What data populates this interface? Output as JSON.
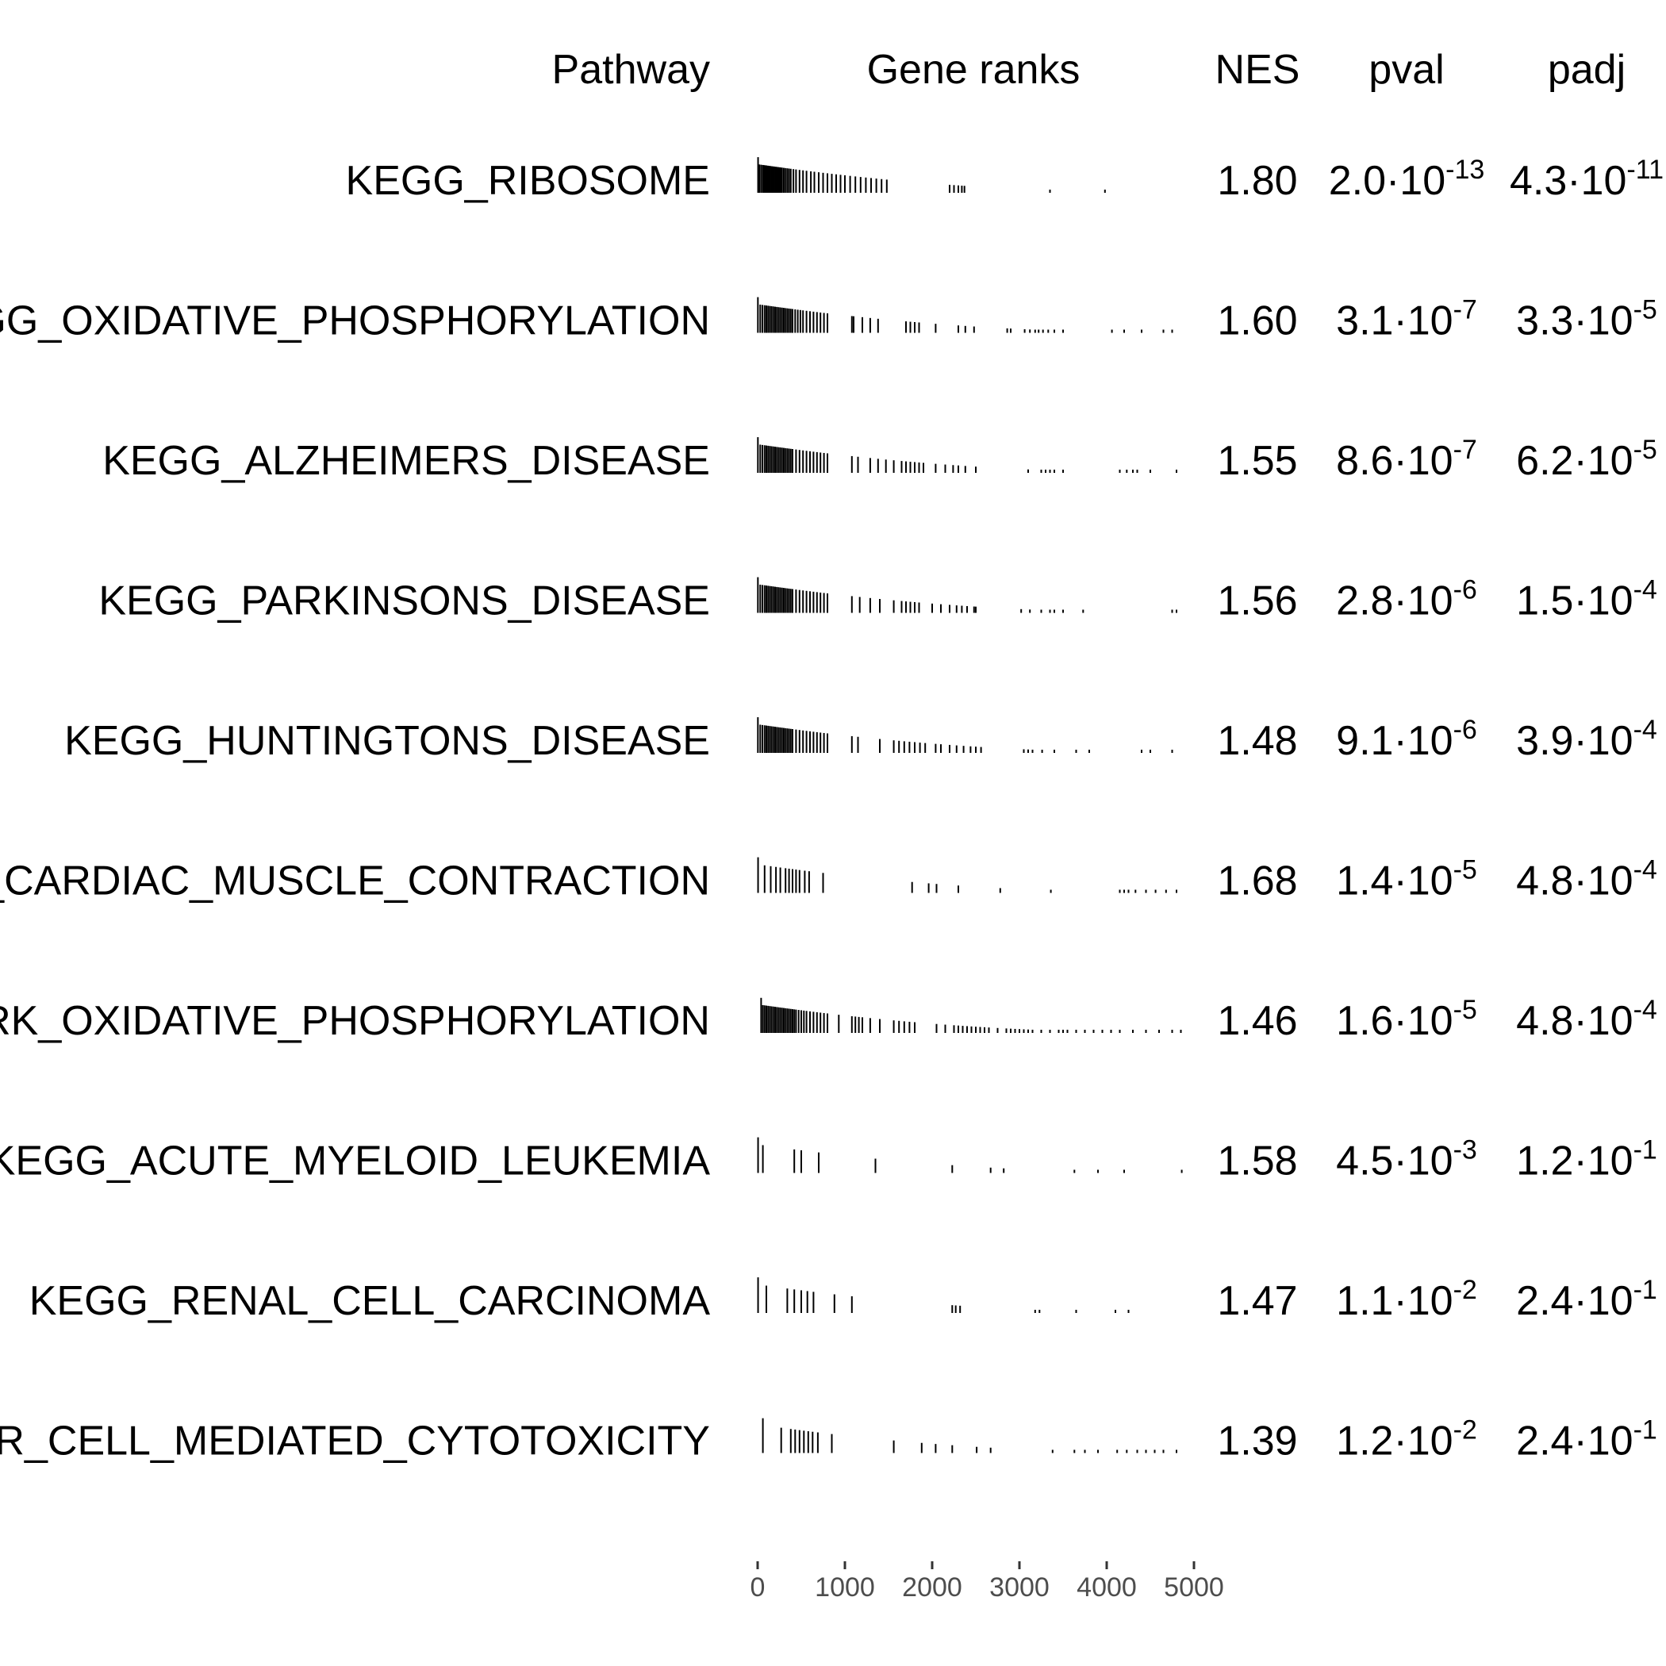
{
  "chart_data": {
    "type": "table",
    "headers": {
      "pathway": "Pathway",
      "gene_ranks": "Gene ranks",
      "nes": "NES",
      "pval": "pval",
      "padj": "padj"
    },
    "x_ticks": [
      "0",
      "1000",
      "2000",
      "3000",
      "4000",
      "5000"
    ],
    "xlim": [
      0,
      5000
    ],
    "rows": [
      {
        "pathway": "KEGG_RIBOSOME",
        "nes": "1.80",
        "pval_mantissa": "2.0·10",
        "pval_exp": "-13",
        "padj_mantissa": "4.3·10",
        "padj_exp": "-11",
        "ranks": [
          5,
          20,
          40,
          60,
          75,
          90,
          100,
          115,
          130,
          145,
          160,
          175,
          190,
          205,
          220,
          235,
          250,
          265,
          280,
          300,
          320,
          340,
          360,
          380,
          410,
          440,
          480,
          520,
          560,
          610,
          650,
          700,
          750,
          800,
          850,
          900,
          950,
          1000,
          1060,
          1120,
          1180,
          1240,
          1300,
          1360,
          1420,
          1480,
          2200,
          2250,
          2300,
          2340,
          2370,
          3350,
          3980
        ]
      },
      {
        "pathway": "KEGG_OXIDATIVE_PHOSPHORYLATION",
        "nes": "1.60",
        "pval_mantissa": "3.1·10",
        "pval_exp": "-7",
        "padj_mantissa": "3.3·10",
        "padj_exp": "-5",
        "ranks": [
          3,
          30,
          55,
          80,
          100,
          120,
          140,
          160,
          180,
          200,
          220,
          240,
          260,
          280,
          300,
          320,
          340,
          360,
          380,
          400,
          430,
          460,
          490,
          520,
          560,
          600,
          640,
          680,
          720,
          760,
          800,
          1080,
          1100,
          1200,
          1290,
          1380,
          1700,
          1750,
          1800,
          1850,
          2040,
          2300,
          2380,
          2480,
          2860,
          2900,
          3060,
          3120,
          3180,
          3220,
          3270,
          3330,
          3400,
          3500,
          4060,
          4200,
          4400,
          4650,
          4750
        ]
      },
      {
        "pathway": "KEGG_ALZHEIMERS_DISEASE",
        "nes": "1.55",
        "pval_mantissa": "8.6·10",
        "pval_exp": "-7",
        "padj_mantissa": "6.2·10",
        "padj_exp": "-5",
        "ranks": [
          3,
          30,
          55,
          80,
          100,
          120,
          140,
          160,
          180,
          200,
          220,
          240,
          260,
          280,
          300,
          320,
          340,
          360,
          380,
          400,
          440,
          480,
          520,
          560,
          600,
          640,
          680,
          720,
          760,
          800,
          1080,
          1150,
          1290,
          1380,
          1470,
          1560,
          1650,
          1700,
          1750,
          1800,
          1850,
          1900,
          2040,
          2150,
          2240,
          2300,
          2380,
          2500,
          3100,
          3250,
          3300,
          3350,
          3400,
          3500,
          4150,
          4230,
          4300,
          4350,
          4500,
          4800
        ]
      },
      {
        "pathway": "KEGG_PARKINSONS_DISEASE",
        "nes": "1.56",
        "pval_mantissa": "2.8·10",
        "pval_exp": "-6",
        "padj_mantissa": "1.5·10",
        "padj_exp": "-4",
        "ranks": [
          3,
          30,
          55,
          80,
          100,
          120,
          140,
          160,
          180,
          200,
          220,
          240,
          260,
          280,
          300,
          320,
          340,
          360,
          380,
          400,
          440,
          480,
          520,
          560,
          600,
          640,
          680,
          720,
          760,
          800,
          1080,
          1170,
          1290,
          1400,
          1560,
          1650,
          1700,
          1750,
          1800,
          1850,
          2000,
          2100,
          2200,
          2280,
          2340,
          2400,
          2480,
          2500,
          3020,
          3120,
          3250,
          3350,
          3400,
          3500,
          3730,
          4750,
          4800
        ]
      },
      {
        "pathway": "KEGG_HUNTINGTONS_DISEASE",
        "nes": "1.48",
        "pval_mantissa": "9.1·10",
        "pval_exp": "-6",
        "padj_mantissa": "3.9·10",
        "padj_exp": "-4",
        "ranks": [
          3,
          30,
          55,
          80,
          100,
          120,
          140,
          160,
          180,
          200,
          220,
          240,
          260,
          280,
          300,
          320,
          340,
          360,
          380,
          400,
          440,
          480,
          520,
          560,
          600,
          640,
          680,
          720,
          760,
          800,
          1080,
          1150,
          1400,
          1560,
          1620,
          1680,
          1740,
          1800,
          1860,
          1920,
          2040,
          2100,
          2200,
          2280,
          2360,
          2440,
          2500,
          2560,
          3050,
          3100,
          3150,
          3260,
          3400,
          3650,
          3800,
          4400,
          4500,
          4750
        ]
      },
      {
        "pathway": "KEGG_CARDIAC_MUSCLE_CONTRACTION",
        "nes": "1.68",
        "pval_mantissa": "1.4·10",
        "pval_exp": "-5",
        "padj_mantissa": "4.8·10",
        "padj_exp": "-4",
        "ranks": [
          5,
          80,
          150,
          210,
          260,
          320,
          360,
          400,
          440,
          480,
          540,
          590,
          750,
          1770,
          1960,
          2050,
          2300,
          2780,
          3360,
          4150,
          4200,
          4250,
          4330,
          4450,
          4560,
          4680,
          4800
        ]
      },
      {
        "pathway": "HALLMARK_OXIDATIVE_PHOSPHORYLATION",
        "nes": "1.46",
        "pval_mantissa": "1.6·10",
        "pval_exp": "-5",
        "padj_mantissa": "4.8·10",
        "padj_exp": "-4",
        "ranks": [
          40,
          60,
          80,
          100,
          120,
          140,
          160,
          180,
          200,
          220,
          240,
          260,
          280,
          300,
          320,
          340,
          360,
          380,
          400,
          420,
          440,
          470,
          500,
          530,
          560,
          600,
          640,
          680,
          720,
          760,
          800,
          930,
          1080,
          1120,
          1160,
          1200,
          1290,
          1400,
          1560,
          1620,
          1680,
          1740,
          1800,
          2050,
          2150,
          2250,
          2300,
          2350,
          2400,
          2450,
          2500,
          2550,
          2600,
          2650,
          2750,
          2850,
          2900,
          2950,
          3000,
          3050,
          3100,
          3150,
          3250,
          3350,
          3450,
          3500,
          3550,
          3650,
          3750,
          3850,
          3950,
          4050,
          4150,
          4300,
          4450,
          4600,
          4750,
          4850
        ]
      },
      {
        "pathway": "KEGG_ACUTE_MYELOID_LEUKEMIA",
        "nes": "1.58",
        "pval_mantissa": "4.5·10",
        "pval_exp": "-3",
        "padj_mantissa": "1.2·10",
        "padj_exp": "-1",
        "ranks": [
          5,
          60,
          420,
          500,
          700,
          1350,
          2230,
          2670,
          2820,
          3630,
          3900,
          4200,
          4860
        ]
      },
      {
        "pathway": "KEGG_RENAL_CELL_CARCINOMA",
        "nes": "1.47",
        "pval_mantissa": "1.1·10",
        "pval_exp": "-2",
        "padj_mantissa": "2.4·10",
        "padj_exp": "-1",
        "ranks": [
          5,
          100,
          340,
          420,
          500,
          570,
          640,
          880,
          1080,
          2230,
          2270,
          2320,
          3180,
          3230,
          3650,
          4100,
          4250
        ]
      },
      {
        "pathway": "KEGG_NATURAL_KILLER_CELL_MEDIATED_CYTOTOXICITY",
        "nes": "1.39",
        "pval_mantissa": "1.2·10",
        "pval_exp": "-2",
        "padj_mantissa": "2.4·10",
        "padj_exp": "-1",
        "ranks": [
          60,
          270,
          380,
          430,
          480,
          530,
          580,
          630,
          690,
          850,
          1560,
          1880,
          2040,
          2230,
          2510,
          2670,
          3380,
          3630,
          3750,
          3900,
          4120,
          4230,
          4350,
          4450,
          4550,
          4650,
          4800
        ]
      }
    ]
  }
}
